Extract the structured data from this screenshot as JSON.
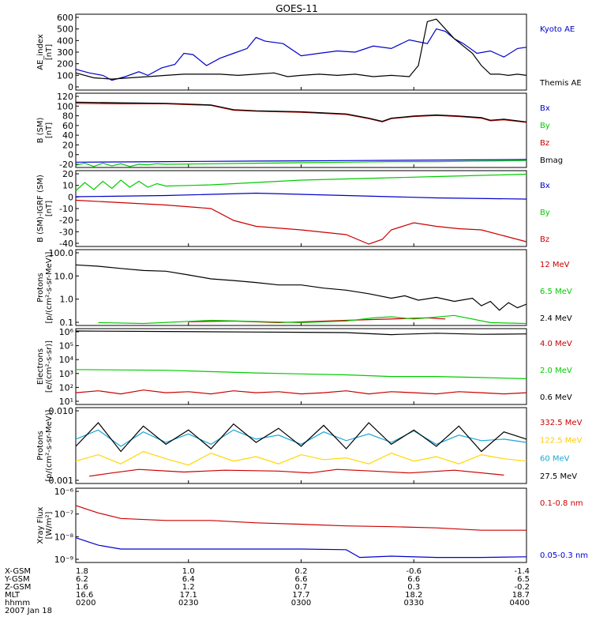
{
  "title": "GOES-11",
  "chart_data": [
    {
      "type": "line",
      "panel": "ae",
      "ylabel_lines": [
        "AE_index",
        "[nT]"
      ],
      "yticks": [
        "600",
        "500",
        "400",
        "300",
        "200",
        "100",
        "0"
      ],
      "ylim": [
        0,
        620
      ],
      "series": [
        {
          "name": "Kyoto AE",
          "color": "#0000cc",
          "x": [
            0,
            3,
            6,
            8,
            11,
            14,
            16,
            19,
            22,
            24,
            26,
            29,
            32,
            35,
            38,
            40,
            42,
            46,
            50,
            54,
            58,
            62,
            66,
            70,
            74,
            78,
            80,
            82,
            84,
            86,
            89,
            92,
            95,
            98,
            100
          ],
          "values": [
            170,
            140,
            120,
            80,
            110,
            150,
            120,
            180,
            210,
            300,
            290,
            200,
            260,
            300,
            340,
            430,
            400,
            380,
            280,
            300,
            320,
            310,
            360,
            340,
            410,
            380,
            500,
            480,
            420,
            380,
            300,
            320,
            270,
            340,
            350
          ]
        },
        {
          "name": "Themis AE",
          "color": "#000000",
          "x": [
            0,
            4,
            8,
            12,
            16,
            20,
            24,
            28,
            32,
            36,
            40,
            44,
            47,
            50,
            54,
            58,
            62,
            66,
            70,
            74,
            76,
            78,
            80,
            84,
            88,
            90,
            92,
            94,
            96,
            98,
            100
          ],
          "values": [
            140,
            100,
            90,
            100,
            110,
            120,
            130,
            130,
            130,
            120,
            130,
            140,
            110,
            120,
            130,
            120,
            130,
            110,
            120,
            110,
            200,
            560,
            580,
            420,
            300,
            200,
            130,
            130,
            120,
            130,
            120
          ]
        }
      ]
    },
    {
      "type": "line",
      "panel": "b",
      "ylabel_lines": [
        "B (SM)",
        "[nT]"
      ],
      "yticks": [
        "120",
        "100",
        "80",
        "60",
        "40",
        "20",
        "0",
        "-20"
      ],
      "ylim": [
        -20,
        120
      ],
      "series": [
        {
          "name": "Bx",
          "color": "#0000cc",
          "x": [
            0,
            20,
            40,
            60,
            80,
            100
          ],
          "values": [
            -10,
            -9,
            -8,
            -7,
            -6,
            -5
          ]
        },
        {
          "name": "By",
          "color": "#00cc00",
          "x": [
            0,
            2,
            4,
            6,
            8,
            10,
            12,
            14,
            16,
            18,
            20,
            30,
            40,
            50,
            60,
            70,
            80,
            90,
            100
          ],
          "values": [
            -16,
            -12,
            -18,
            -12,
            -17,
            -13,
            -18,
            -14,
            -15,
            -13,
            -14,
            -13,
            -12,
            -11,
            -10,
            -9,
            -9,
            -8,
            -7
          ]
        },
        {
          "name": "Bz",
          "color": "#cc0000",
          "x": [
            0,
            10,
            20,
            30,
            35,
            40,
            50,
            60,
            65,
            68,
            70,
            75,
            80,
            85,
            90,
            92,
            95,
            100
          ],
          "values": [
            101,
            100,
            100,
            97,
            88,
            86,
            84,
            80,
            72,
            66,
            72,
            76,
            78,
            76,
            73,
            68,
            70,
            65
          ]
        },
        {
          "name": "Bmag",
          "color": "#000000",
          "x": [
            0,
            10,
            20,
            30,
            35,
            40,
            50,
            60,
            65,
            68,
            70,
            75,
            80,
            85,
            90,
            92,
            95,
            100
          ],
          "values": [
            103,
            102,
            101,
            98,
            89,
            87,
            85,
            81,
            73,
            67,
            73,
            77,
            79,
            77,
            74,
            69,
            71,
            66
          ]
        }
      ]
    },
    {
      "type": "line",
      "panel": "db",
      "ylabel_lines": [
        "B (SM)-IGRF (SM)",
        "[nT]"
      ],
      "yticks": [
        "20",
        "10",
        "0",
        "-10",
        "-20",
        "-30",
        "-40"
      ],
      "ylim": [
        -42,
        22
      ],
      "series": [
        {
          "name": "Bx",
          "color": "#0000cc",
          "x": [
            0,
            20,
            40,
            60,
            80,
            100
          ],
          "values": [
            0,
            1,
            3,
            1,
            -1,
            -2
          ]
        },
        {
          "name": "By",
          "color": "#00cc00",
          "x": [
            0,
            2,
            4,
            6,
            8,
            10,
            12,
            14,
            16,
            18,
            20,
            30,
            40,
            50,
            60,
            70,
            80,
            90,
            100
          ],
          "values": [
            5,
            12,
            6,
            13,
            7,
            14,
            8,
            13,
            8,
            11,
            9,
            10,
            12,
            14,
            15,
            16,
            17,
            18,
            19
          ]
        },
        {
          "name": "Bz",
          "color": "#cc0000",
          "x": [
            0,
            10,
            20,
            30,
            35,
            40,
            50,
            55,
            60,
            65,
            68,
            70,
            75,
            80,
            85,
            90,
            95,
            100
          ],
          "values": [
            -3,
            -5,
            -7,
            -10,
            -20,
            -25,
            -28,
            -30,
            -32,
            -40,
            -36,
            -28,
            -22,
            -25,
            -27,
            -28,
            -33,
            -38
          ]
        }
      ]
    },
    {
      "type": "line",
      "panel": "protons_low",
      "scale": "log",
      "ylabel_lines": [
        "Protons",
        "[p/(cm²-s-sr-MeV)]"
      ],
      "yticks": [
        "100.0",
        "10.0",
        "1.0",
        "0.1"
      ],
      "ylim": [
        0.1,
        100
      ],
      "series": [
        {
          "name": "12 MeV",
          "color": "#cc0000",
          "x": [
            25,
            35,
            45,
            60,
            78,
            82
          ],
          "values": [
            0.14,
            0.15,
            0.13,
            0.16,
            0.2,
            0.18
          ]
        },
        {
          "name": "6.5 MeV",
          "color": "#00cc00",
          "x": [
            5,
            15,
            30,
            50,
            60,
            66,
            70,
            75,
            84,
            92,
            100
          ],
          "values": [
            0.13,
            0.12,
            0.16,
            0.13,
            0.15,
            0.2,
            0.22,
            0.18,
            0.25,
            0.13,
            0.12
          ]
        },
        {
          "name": "2.4 MeV",
          "color": "#000000",
          "x": [
            0,
            5,
            10,
            15,
            20,
            25,
            30,
            35,
            40,
            45,
            50,
            55,
            60,
            65,
            70,
            73,
            76,
            80,
            84,
            88,
            90,
            92,
            94,
            96,
            98,
            100
          ],
          "values": [
            25,
            22,
            18,
            15,
            14,
            10,
            7,
            6,
            5,
            4,
            4,
            3,
            2.5,
            1.8,
            1.2,
            1.5,
            1,
            1.3,
            0.9,
            1.2,
            0.6,
            0.9,
            0.4,
            0.8,
            0.5,
            0.7
          ]
        }
      ]
    },
    {
      "type": "line",
      "panel": "electrons",
      "scale": "log",
      "ylabel_lines": [
        "Electrons",
        "[e/(cm²-s-sr)]"
      ],
      "yticks": [
        "10⁶",
        "10⁵",
        "10⁴",
        "10³",
        "10²",
        "10¹"
      ],
      "ylim": [
        10,
        1000000
      ],
      "series": [
        {
          "name": "4.0 MeV",
          "color": "#cc0000",
          "x": [
            0,
            5,
            10,
            15,
            20,
            25,
            30,
            35,
            40,
            45,
            50,
            55,
            60,
            65,
            70,
            75,
            80,
            85,
            90,
            95,
            100
          ],
          "values": [
            60,
            80,
            50,
            90,
            60,
            70,
            50,
            80,
            60,
            70,
            50,
            60,
            80,
            50,
            70,
            60,
            50,
            70,
            60,
            50,
            60
          ]
        },
        {
          "name": "2.0 MeV",
          "color": "#00cc00",
          "x": [
            0,
            20,
            40,
            60,
            70,
            80,
            90,
            100
          ],
          "values": [
            2000,
            1800,
            1200,
            900,
            700,
            700,
            600,
            500
          ]
        },
        {
          "name": "0.6 MeV",
          "color": "#000000",
          "x": [
            0,
            20,
            40,
            60,
            70,
            72,
            80,
            90,
            100
          ],
          "values": [
            700000,
            650000,
            600000,
            550000,
            400000,
            420000,
            500000,
            420000,
            450000
          ]
        }
      ]
    },
    {
      "type": "line",
      "panel": "protons_high",
      "scale": "log",
      "ylabel_lines": [
        "Protons",
        "[p/(cm²-s-sr-MeV)]"
      ],
      "yticks": [
        "0.010",
        "0.001"
      ],
      "ylim": [
        0.001,
        0.07
      ],
      "series": [
        {
          "name": "332.5 MeV",
          "color": "#cc0000",
          "x": [
            3,
            8,
            14,
            24,
            33,
            45,
            52,
            58,
            66,
            74,
            84,
            95
          ],
          "values": [
            0.0015,
            0.0018,
            0.0022,
            0.0019,
            0.0021,
            0.002,
            0.0018,
            0.0022,
            0.002,
            0.0018,
            0.0021,
            0.0016
          ]
        },
        {
          "name": "122.5 MeV",
          "color": "#ffd700",
          "x": [
            0,
            5,
            10,
            15,
            20,
            25,
            30,
            35,
            40,
            45,
            50,
            55,
            60,
            65,
            70,
            75,
            80,
            85,
            90,
            95,
            100
          ],
          "values": [
            0.0035,
            0.005,
            0.003,
            0.006,
            0.004,
            0.0028,
            0.0055,
            0.0035,
            0.0045,
            0.003,
            0.005,
            0.0038,
            0.0042,
            0.003,
            0.0055,
            0.0035,
            0.0045,
            0.003,
            0.005,
            0.004,
            0.0035
          ]
        },
        {
          "name": "60 MeV",
          "color": "#1aa7d6",
          "x": [
            0,
            5,
            10,
            15,
            20,
            25,
            30,
            35,
            40,
            45,
            50,
            55,
            60,
            65,
            70,
            75,
            80,
            85,
            90,
            95,
            100
          ],
          "values": [
            0.012,
            0.02,
            0.008,
            0.018,
            0.01,
            0.016,
            0.009,
            0.02,
            0.012,
            0.015,
            0.009,
            0.018,
            0.011,
            0.016,
            0.01,
            0.019,
            0.009,
            0.015,
            0.011,
            0.012,
            0.01
          ]
        },
        {
          "name": "27.5 MeV",
          "color": "#000000",
          "x": [
            0,
            5,
            10,
            15,
            20,
            25,
            30,
            35,
            40,
            45,
            50,
            55,
            60,
            65,
            70,
            75,
            80,
            85,
            90,
            95,
            100
          ],
          "values": [
            0.008,
            0.03,
            0.006,
            0.025,
            0.009,
            0.02,
            0.007,
            0.028,
            0.01,
            0.022,
            0.008,
            0.026,
            0.007,
            0.03,
            0.009,
            0.02,
            0.008,
            0.025,
            0.006,
            0.018,
            0.012
          ]
        }
      ]
    },
    {
      "type": "line",
      "panel": "xray",
      "scale": "log",
      "ylabel_lines": [
        "Xray Flux",
        "[W/m²]"
      ],
      "yticks": [
        "10⁻⁶",
        "10⁻⁷",
        "10⁻⁸",
        "10⁻⁹"
      ],
      "ylim": [
        1e-09,
        1e-06
      ],
      "series": [
        {
          "name": "0.1-0.8 nm",
          "color": "#cc0000",
          "x": [
            0,
            5,
            10,
            20,
            30,
            40,
            50,
            60,
            70,
            80,
            90,
            100
          ],
          "values": [
            2e-07,
            1e-07,
            6e-08,
            5e-08,
            5e-08,
            4e-08,
            3.5e-08,
            3e-08,
            2.8e-08,
            2.5e-08,
            2e-08,
            2e-08
          ]
        },
        {
          "name": "0.05-0.3 nm",
          "color": "#0000cc",
          "x": [
            0,
            5,
            10,
            20,
            30,
            40,
            50,
            60,
            63,
            70,
            80,
            90,
            100
          ],
          "values": [
            1e-08,
            5e-09,
            3.5e-09,
            3.5e-09,
            3.5e-09,
            3.5e-09,
            3.5e-09,
            3.3e-09,
            1.6e-09,
            1.8e-09,
            1.6e-09,
            1.6e-09,
            1.7e-09
          ]
        }
      ]
    }
  ],
  "ephemeris": {
    "row_labels": [
      "X-GSM",
      "Y-GSM",
      "Z-GSM",
      "MLT",
      "hhmm"
    ],
    "columns": [
      [
        "1.8",
        "6.2",
        "1.6",
        "16.6",
        "0200"
      ],
      [
        "1.0",
        "6.4",
        "1.2",
        "17.1",
        "0230"
      ],
      [
        "0.2",
        "6.6",
        "0.7",
        "17.7",
        "0300"
      ],
      [
        "-0.6",
        "6.6",
        "0.3",
        "18.2",
        "0330"
      ],
      [
        "-1.4",
        "6.5",
        "-0.2",
        "18.7",
        "0400"
      ]
    ],
    "date": "2007 Jan 18"
  }
}
